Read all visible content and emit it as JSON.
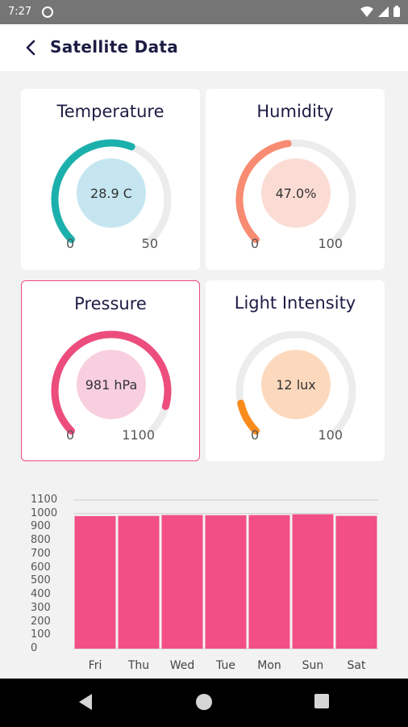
{
  "status_bar": {
    "time": "7:27"
  },
  "header": {
    "title": "Satellite Data"
  },
  "gauges": [
    {
      "title": "Temperature",
      "value_text": "28.9 C",
      "min": "0",
      "max": "50",
      "fraction": 0.578,
      "color": "#1cb0ac",
      "inner_color": "#c5e6f0"
    },
    {
      "title": "Humidity",
      "value_text": "47.0%",
      "min": "0",
      "max": "100",
      "fraction": 0.47,
      "color": "#f88c72",
      "inner_color": "#fbdcd4"
    },
    {
      "title": "Pressure",
      "value_text": "981 hPa",
      "min": "0",
      "max": "1100",
      "fraction": 0.892,
      "color": "#ec4d7d",
      "inner_color": "#f8cfdf"
    },
    {
      "title": "Light Intensity",
      "value_text": "12 lux",
      "min": "0",
      "max": "100",
      "fraction": 0.12,
      "color": "#f98a1c",
      "inner_color": "#fcd9bd"
    }
  ],
  "chart_data": {
    "type": "bar",
    "categories": [
      "Fri",
      "Thu",
      "Wed",
      "Tue",
      "Mon",
      "Sun",
      "Sat"
    ],
    "values": [
      981,
      982,
      989,
      987,
      988,
      994,
      982
    ],
    "ylim": [
      0,
      1100
    ],
    "yticks": [
      "0",
      "100",
      "200",
      "300",
      "400",
      "500",
      "600",
      "700",
      "800",
      "900",
      "1000",
      "1100"
    ],
    "bar_color": "#f24f86",
    "grid": true
  }
}
